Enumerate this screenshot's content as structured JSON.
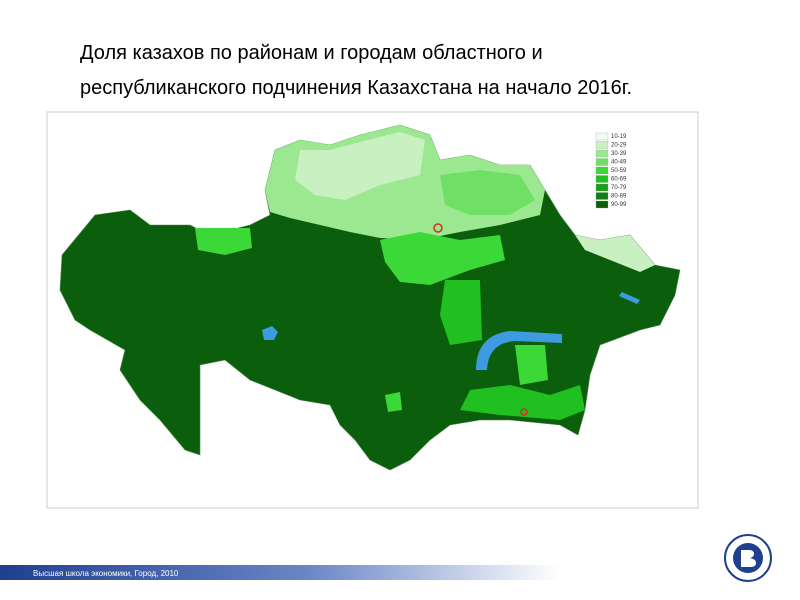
{
  "title_lines": [
    "Доля казахов по районам и городам областного и",
    "республиканского подчинения Казахстана на начало 2016г."
  ],
  "legend": [
    {
      "label": "10-19",
      "color": "#f4fbf2"
    },
    {
      "label": "20-29",
      "color": "#c9f0c0"
    },
    {
      "label": "30-39",
      "color": "#9ce891"
    },
    {
      "label": "40-49",
      "color": "#6fe065"
    },
    {
      "label": "50-59",
      "color": "#3cd838"
    },
    {
      "label": "60-69",
      "color": "#20c020"
    },
    {
      "label": "70-79",
      "color": "#15a015"
    },
    {
      "label": "80-89",
      "color": "#0e7f10"
    },
    {
      "label": "90-99",
      "color": "#0a5e0c"
    }
  ],
  "footer": "Высшая школа экономики, Город, 2010"
}
